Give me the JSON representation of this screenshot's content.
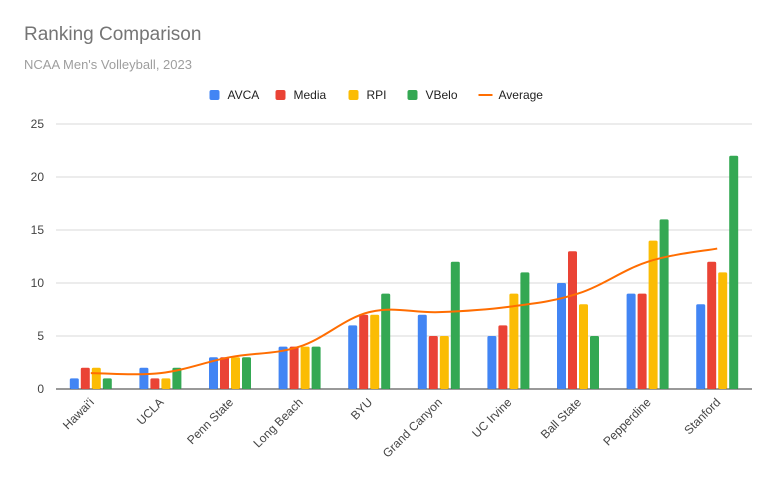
{
  "chart_data": {
    "type": "bar",
    "title": "Ranking Comparison",
    "subtitle": "NCAA Men's Volleyball, 2023",
    "categories": [
      "Hawai'i",
      "UCLA",
      "Penn State",
      "Long Beach",
      "BYU",
      "Grand Canyon",
      "UC Irvine",
      "Ball State",
      "Pepperdine",
      "Stanford"
    ],
    "series": [
      {
        "name": "AVCA",
        "type": "bar",
        "color": "#4285f4",
        "values": [
          1,
          2,
          3,
          4,
          6,
          7,
          5,
          10,
          9,
          8
        ]
      },
      {
        "name": "Media",
        "type": "bar",
        "color": "#ea4335",
        "values": [
          2,
          1,
          3,
          4,
          7,
          5,
          6,
          13,
          9,
          12
        ]
      },
      {
        "name": "RPI",
        "type": "bar",
        "color": "#fbbc04",
        "values": [
          2,
          1,
          3,
          4,
          7,
          5,
          9,
          8,
          14,
          11
        ]
      },
      {
        "name": "VBelo",
        "type": "bar",
        "color": "#34a853",
        "values": [
          1,
          2,
          3,
          4,
          9,
          12,
          11,
          5,
          16,
          22
        ]
      },
      {
        "name": "Average",
        "type": "line",
        "color": "#ff6d01",
        "values": [
          1.5,
          1.5,
          3,
          4,
          7.25,
          7.25,
          7.75,
          9,
          12,
          13.25
        ]
      }
    ],
    "ylim": [
      0,
      25
    ],
    "yticks": [
      "0",
      "5",
      "10",
      "15",
      "20",
      "25"
    ],
    "grid": true,
    "legend_position": "top-center"
  }
}
